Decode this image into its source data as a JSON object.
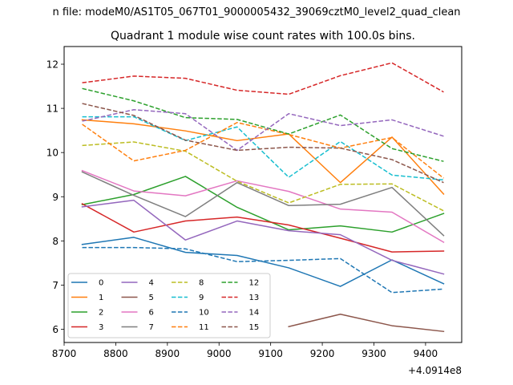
{
  "chart_data": {
    "type": "line",
    "suptitle": "n file: modeM0/AS1T05_067T01_9000005432_39069cztM0_level2_quad_clean",
    "title": "Quadrant 1 module wise count rates with 100.0s bins.",
    "xlabel": "",
    "ylabel": "",
    "x_offset_label": "+4.0914e8",
    "xlim": [
      8700,
      9470
    ],
    "ylim": [
      5.7,
      12.4
    ],
    "xticks": [
      8700,
      8800,
      8900,
      9000,
      9100,
      9200,
      9300,
      9400
    ],
    "yticks": [
      6,
      7,
      8,
      9,
      10,
      11,
      12
    ],
    "grid": false,
    "legend_position": "lower-left",
    "legend_columns": 4,
    "x": [
      8735,
      8835,
      8935,
      9035,
      9135,
      9235,
      9335,
      9435
    ],
    "series": [
      {
        "name": "0",
        "style": "solid",
        "color": "#1f77b4",
        "values": [
          7.92,
          8.08,
          7.74,
          7.67,
          7.39,
          6.97,
          7.57,
          7.03
        ]
      },
      {
        "name": "1",
        "style": "solid",
        "color": "#ff7f0e",
        "values": [
          10.74,
          10.65,
          10.49,
          10.27,
          10.42,
          9.32,
          10.35,
          9.06
        ]
      },
      {
        "name": "2",
        "style": "solid",
        "color": "#2ca02c",
        "values": [
          8.82,
          9.05,
          9.46,
          8.76,
          8.25,
          8.34,
          8.2,
          8.62
        ]
      },
      {
        "name": "3",
        "style": "solid",
        "color": "#d62728",
        "values": [
          8.84,
          8.2,
          8.45,
          8.54,
          8.36,
          8.06,
          7.75,
          7.77
        ]
      },
      {
        "name": "4",
        "style": "solid",
        "color": "#9467bd",
        "values": [
          8.77,
          8.92,
          8.02,
          8.45,
          8.23,
          8.14,
          7.56,
          7.25
        ]
      },
      {
        "name": "5",
        "style": "solid",
        "color": "#8c564b",
        "values": [
          null,
          null,
          null,
          null,
          6.06,
          6.34,
          6.08,
          5.95
        ]
      },
      {
        "name": "6",
        "style": "solid",
        "color": "#e377c2",
        "values": [
          9.59,
          9.13,
          9.02,
          9.36,
          9.12,
          8.72,
          8.65,
          7.97
        ]
      },
      {
        "name": "7",
        "style": "solid",
        "color": "#7f7f7f",
        "values": [
          9.56,
          9.03,
          8.55,
          9.32,
          8.8,
          8.83,
          9.21,
          8.12
        ]
      },
      {
        "name": "8",
        "style": "dashed",
        "color": "#bcbd22",
        "values": [
          10.16,
          10.24,
          10.03,
          9.35,
          8.86,
          9.28,
          9.29,
          8.68
        ]
      },
      {
        "name": "9",
        "style": "dashed",
        "color": "#17becf",
        "values": [
          10.81,
          10.81,
          10.27,
          10.58,
          9.44,
          10.25,
          9.49,
          9.38
        ]
      },
      {
        "name": "10",
        "style": "dashed",
        "color": "#1f77b4",
        "values": [
          7.85,
          7.85,
          7.82,
          7.53,
          7.56,
          7.6,
          6.83,
          6.91
        ]
      },
      {
        "name": "11",
        "style": "dashed",
        "color": "#ff7f0e",
        "values": [
          10.64,
          9.81,
          10.05,
          10.68,
          10.41,
          10.1,
          10.34,
          9.42
        ]
      },
      {
        "name": "12",
        "style": "dashed",
        "color": "#2ca02c",
        "values": [
          11.45,
          11.17,
          10.79,
          10.75,
          10.42,
          10.85,
          10.09,
          9.8
        ]
      },
      {
        "name": "13",
        "style": "dashed",
        "color": "#d62728",
        "values": [
          11.58,
          11.73,
          11.68,
          11.41,
          11.32,
          11.74,
          12.03,
          11.37
        ]
      },
      {
        "name": "14",
        "style": "dashed",
        "color": "#9467bd",
        "values": [
          10.71,
          10.97,
          10.88,
          10.05,
          10.88,
          10.61,
          10.74,
          10.37
        ]
      },
      {
        "name": "15",
        "style": "dashed",
        "color": "#8c564b",
        "values": [
          11.11,
          10.84,
          10.28,
          10.05,
          10.12,
          10.1,
          9.84,
          9.32
        ]
      }
    ]
  }
}
